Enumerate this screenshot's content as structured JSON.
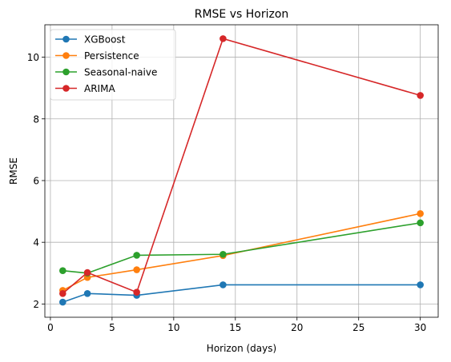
{
  "chart_data": {
    "type": "line",
    "title": "RMSE vs Horizon",
    "xlabel": "Horizon (days)",
    "ylabel": "RMSE",
    "xlim": [
      -0.45,
      31.45
    ],
    "ylim": [
      1.57,
      11.05
    ],
    "xticks": [
      0,
      5,
      10,
      15,
      20,
      25,
      30
    ],
    "yticks": [
      2,
      4,
      6,
      8,
      10
    ],
    "grid": true,
    "legend_position": "top-left",
    "x": [
      1,
      3,
      7,
      14,
      30
    ],
    "series": [
      {
        "name": "XGBoost",
        "color": "#1f77b4",
        "values": [
          2.06,
          2.34,
          2.28,
          2.62,
          2.62
        ]
      },
      {
        "name": "Persistence",
        "color": "#ff7f0e",
        "values": [
          2.44,
          2.86,
          3.11,
          3.57,
          4.93
        ]
      },
      {
        "name": "Seasonal-naive",
        "color": "#2ca02c",
        "values": [
          3.08,
          3.0,
          3.58,
          3.61,
          4.63
        ]
      },
      {
        "name": "ARIMA",
        "color": "#d62728",
        "values": [
          2.34,
          3.02,
          2.38,
          10.6,
          8.76
        ]
      }
    ]
  }
}
